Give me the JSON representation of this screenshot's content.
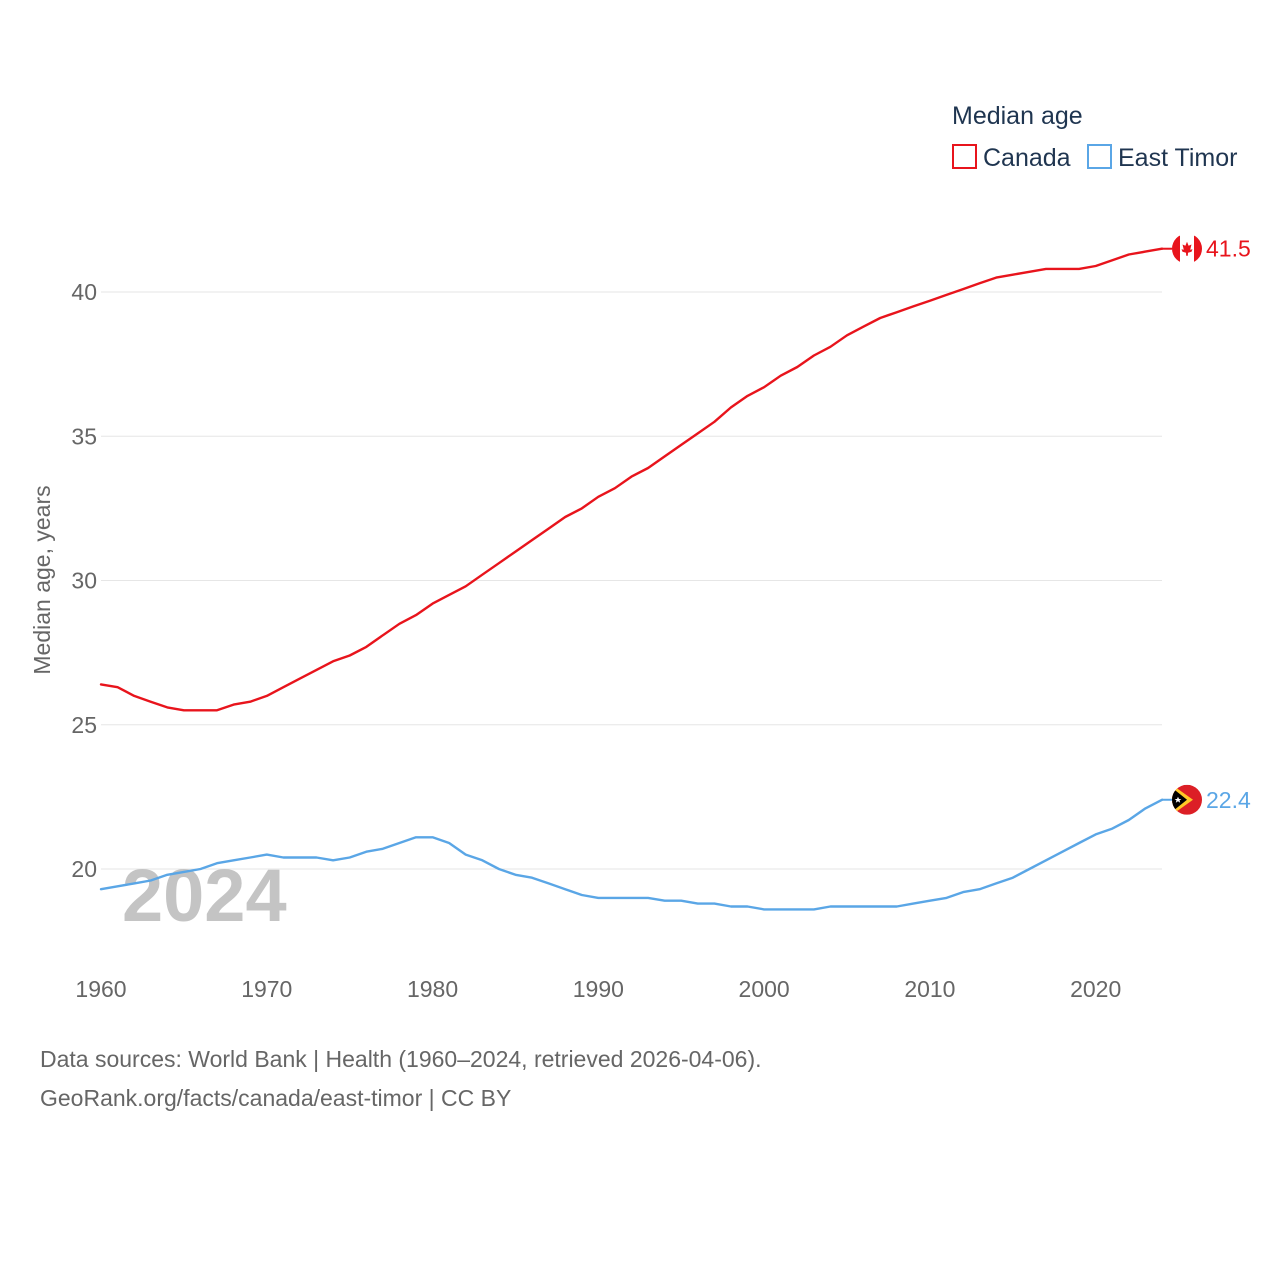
{
  "chart_data": {
    "type": "line",
    "title": "Median age",
    "ylabel": "Median age, years",
    "xlabel": "",
    "xlim": [
      1960,
      2024
    ],
    "ylim": [
      17.5,
      43
    ],
    "x_ticks": [
      1960,
      1970,
      1980,
      1990,
      2000,
      2010,
      2020
    ],
    "y_ticks": [
      20,
      25,
      30,
      35,
      40
    ],
    "grid": true,
    "legend_position": "top-right",
    "year_label": "2024",
    "x": [
      1960,
      1961,
      1962,
      1963,
      1964,
      1965,
      1966,
      1967,
      1968,
      1969,
      1970,
      1971,
      1972,
      1973,
      1974,
      1975,
      1976,
      1977,
      1978,
      1979,
      1980,
      1981,
      1982,
      1983,
      1984,
      1985,
      1986,
      1987,
      1988,
      1989,
      1990,
      1991,
      1992,
      1993,
      1994,
      1995,
      1996,
      1997,
      1998,
      1999,
      2000,
      2001,
      2002,
      2003,
      2004,
      2005,
      2006,
      2007,
      2008,
      2009,
      2010,
      2011,
      2012,
      2013,
      2014,
      2015,
      2016,
      2017,
      2018,
      2019,
      2020,
      2021,
      2022,
      2023,
      2024
    ],
    "series": [
      {
        "name": "Canada",
        "color": "#e8141c",
        "end_label": "41.5",
        "flag": "canada-flag-icon",
        "values": [
          26.4,
          26.3,
          26.0,
          25.8,
          25.6,
          25.5,
          25.5,
          25.5,
          25.7,
          25.8,
          26.0,
          26.3,
          26.6,
          26.9,
          27.2,
          27.4,
          27.7,
          28.1,
          28.5,
          28.8,
          29.2,
          29.5,
          29.8,
          30.2,
          30.6,
          31.0,
          31.4,
          31.8,
          32.2,
          32.5,
          32.9,
          33.2,
          33.6,
          33.9,
          34.3,
          34.7,
          35.1,
          35.5,
          36.0,
          36.4,
          36.7,
          37.1,
          37.4,
          37.8,
          38.1,
          38.5,
          38.8,
          39.1,
          39.3,
          39.5,
          39.7,
          39.9,
          40.1,
          40.3,
          40.5,
          40.6,
          40.7,
          40.8,
          40.8,
          40.8,
          40.9,
          41.1,
          41.3,
          41.4,
          41.5
        ]
      },
      {
        "name": "East Timor",
        "color": "#5aa6e6",
        "end_label": "22.4",
        "flag": "east-timor-flag-icon",
        "values": [
          19.3,
          19.4,
          19.5,
          19.6,
          19.8,
          19.9,
          20.0,
          20.2,
          20.3,
          20.4,
          20.5,
          20.4,
          20.4,
          20.4,
          20.3,
          20.4,
          20.6,
          20.7,
          20.9,
          21.1,
          21.1,
          20.9,
          20.5,
          20.3,
          20.0,
          19.8,
          19.7,
          19.5,
          19.3,
          19.1,
          19.0,
          19.0,
          19.0,
          19.0,
          18.9,
          18.9,
          18.8,
          18.8,
          18.7,
          18.7,
          18.6,
          18.6,
          18.6,
          18.6,
          18.7,
          18.7,
          18.7,
          18.7,
          18.7,
          18.8,
          18.9,
          19.0,
          19.2,
          19.3,
          19.5,
          19.7,
          20.0,
          20.3,
          20.6,
          20.9,
          21.2,
          21.4,
          21.7,
          22.1,
          22.4
        ]
      }
    ]
  },
  "source": {
    "line1": "Data sources: World Bank | Health (1960–2024, retrieved 2026-04-06).",
    "line2": "GeoRank.org/facts/canada/east-timor | CC BY"
  }
}
